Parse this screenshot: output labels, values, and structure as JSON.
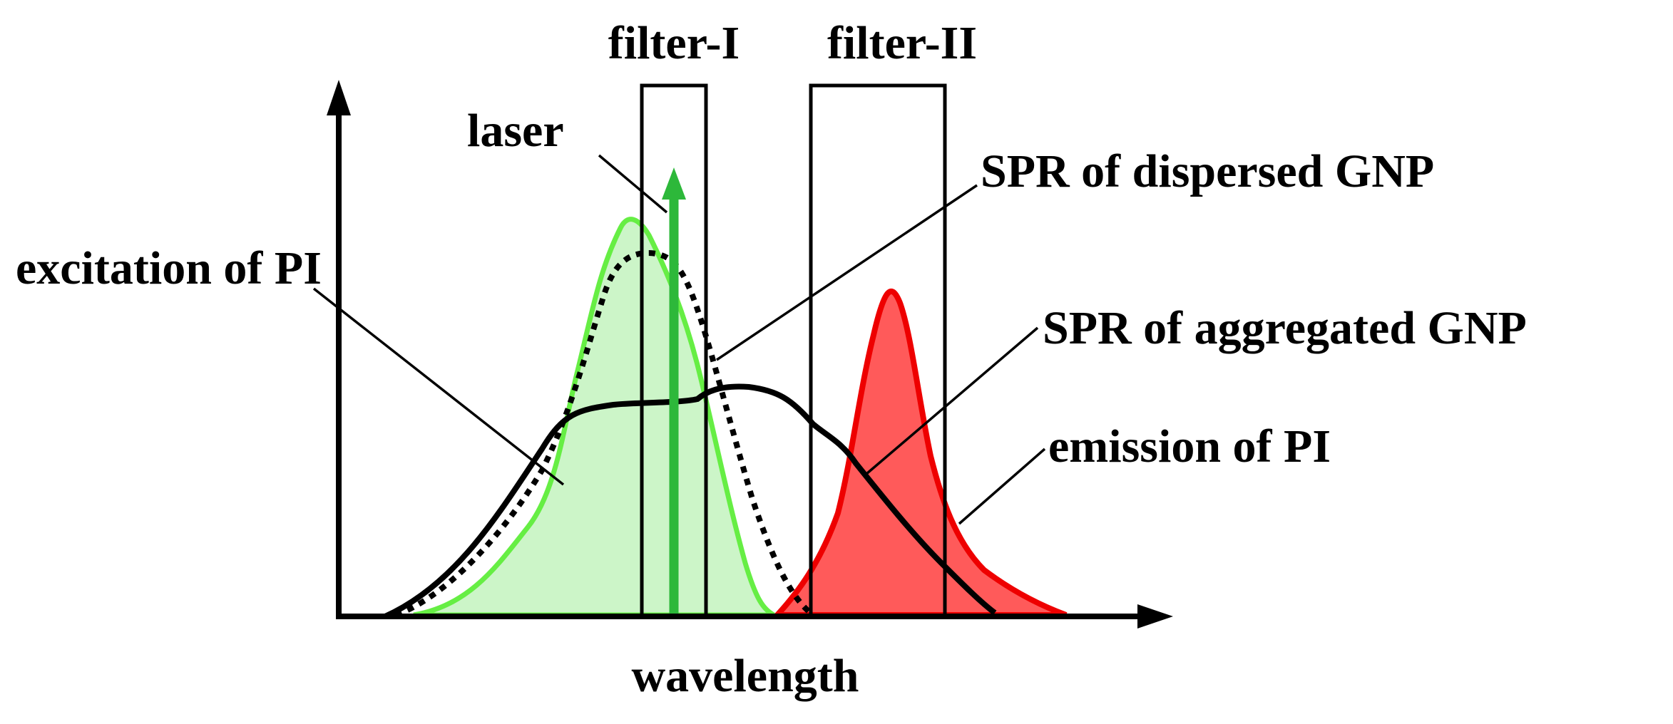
{
  "labels": {
    "filter_1": "filter-I",
    "filter_2": "filter-II",
    "laser": "laser",
    "spr_dispersed": "SPR of dispersed GNP",
    "excitation_pi": "excitation of PI",
    "spr_aggregated": "SPR of aggregated GNP",
    "emission_pi": "emission of PI",
    "x_axis": "wavelength"
  },
  "colors": {
    "excitation_stroke": "#66ee44",
    "excitation_fill": "#ccf5c8",
    "emission_stroke": "#ee0000",
    "emission_fill": "#ff5a5a",
    "laser": "#2db83a",
    "axis": "#000000"
  },
  "icons": {
    "y_axis_arrow": "arrow-up-icon",
    "x_axis_arrow": "arrow-right-icon",
    "laser_arrow": "arrow-up-icon"
  }
}
